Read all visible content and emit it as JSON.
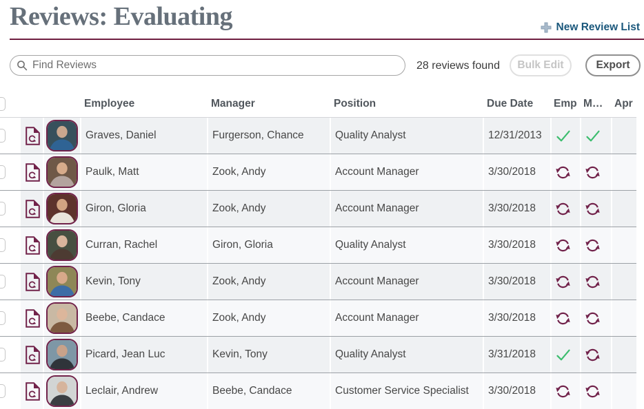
{
  "page": {
    "title": "Reviews: Evaluating"
  },
  "actions": {
    "new_review_list": "New Review List"
  },
  "toolbar": {
    "search_placeholder": "Find Reviews",
    "results_summary": "28 reviews found",
    "bulk_edit": "Bulk Edit",
    "export": "Export"
  },
  "table": {
    "columns": {
      "employee": "Employee",
      "manager": "Manager",
      "position": "Position",
      "due_date": "Due Date",
      "emp": "Emp",
      "mgr": "M…",
      "apr": "Apr"
    },
    "rows": [
      {
        "employee": "Graves, Daniel",
        "manager": "Furgerson, Chance",
        "position": "Quality Analyst",
        "due_date": "12/31/2013",
        "emp_status": "complete",
        "mgr_status": "complete",
        "apr_status": "",
        "avatar": {
          "bg": "#37505c",
          "fg": "#2f6394",
          "skin": "#c9a68e"
        }
      },
      {
        "employee": "Paulk, Matt",
        "manager": "Zook, Andy",
        "position": "Account Manager",
        "due_date": "3/30/2018",
        "emp_status": "in-progress",
        "mgr_status": "in-progress",
        "apr_status": "",
        "avatar": {
          "bg": "#6f5847",
          "fg": "#b3a39e",
          "skin": "#d7ab8b"
        }
      },
      {
        "employee": "Giron, Gloria",
        "manager": "Zook, Andy",
        "position": "Account Manager",
        "due_date": "3/30/2018",
        "emp_status": "in-progress",
        "mgr_status": "in-progress",
        "apr_status": "",
        "avatar": {
          "bg": "#5d322c",
          "fg": "#e9e4dc",
          "skin": "#d2a382"
        }
      },
      {
        "employee": "Curran, Rachel",
        "manager": "Giron, Gloria",
        "position": "Quality Analyst",
        "due_date": "3/30/2018",
        "emp_status": "in-progress",
        "mgr_status": "in-progress",
        "apr_status": "",
        "avatar": {
          "bg": "#474f41",
          "fg": "#4d3b32",
          "skin": "#d9b49c"
        }
      },
      {
        "employee": "Kevin, Tony",
        "manager": "Zook, Andy",
        "position": "Account Manager",
        "due_date": "3/30/2018",
        "emp_status": "in-progress",
        "mgr_status": "in-progress",
        "apr_status": "",
        "avatar": {
          "bg": "#8e8757",
          "fg": "#3d6da6",
          "skin": "#d8a98a"
        }
      },
      {
        "employee": "Beebe, Candace",
        "manager": "Zook, Andy",
        "position": "Account Manager",
        "due_date": "3/30/2018",
        "emp_status": "in-progress",
        "mgr_status": "in-progress",
        "apr_status": "",
        "avatar": {
          "bg": "#c9b9a4",
          "fg": "#7d5a40",
          "skin": "#dcb69b"
        }
      },
      {
        "employee": "Picard, Jean Luc",
        "manager": "Kevin, Tony",
        "position": "Quality Analyst",
        "due_date": "3/31/2018",
        "emp_status": "complete",
        "mgr_status": "in-progress",
        "apr_status": "",
        "avatar": {
          "bg": "#7e97a6",
          "fg": "#2f343a",
          "skin": "#c8a28a"
        }
      },
      {
        "employee": "Leclair, Andrew",
        "manager": "Beebe, Candace",
        "position": "Customer Service Specialist",
        "due_date": "3/30/2018",
        "emp_status": "in-progress",
        "mgr_status": "in-progress",
        "apr_status": "",
        "avatar": {
          "bg": "#d2d5d4",
          "fg": "#3b3e42",
          "skin": "#d6b49c"
        }
      }
    ]
  },
  "icons": {
    "search": "magnifier",
    "plus": "plus-cross",
    "review_document": "page-with-refresh-arrow",
    "complete": "green-check",
    "in_progress": "maroon-sync-arrows"
  },
  "colors": {
    "accent_maroon": "#71224a",
    "rule_maroon": "#6e1d3f",
    "link_blue": "#1b587c",
    "check_green": "#3cbd6e",
    "row_odd": "#eff1f3",
    "row_even": "#f7f8fa",
    "title_gray": "#66707a"
  }
}
